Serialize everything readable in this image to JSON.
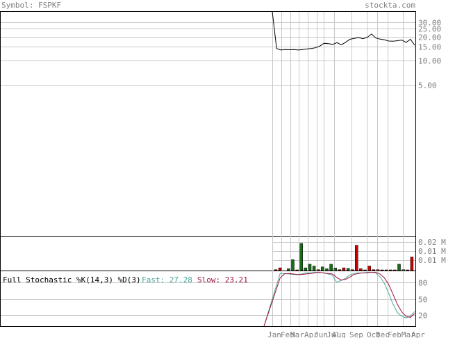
{
  "header": {
    "symbol_label": "Symbol: FSPKF",
    "site": "stockta.com"
  },
  "colors": {
    "header_text": "#7f7f7f",
    "axis_text": "#7f7f7f",
    "grid": "#c8c8c8",
    "price_line": "#000000",
    "volume_up": "#1a6b1a",
    "volume_down": "#cc0000",
    "fast_line": "#4aa8a0",
    "slow_line": "#a0103c",
    "stoch_label": "#000000"
  },
  "chart_data": [
    {
      "type": "line",
      "panel": "price",
      "scale": "log",
      "ylim": [
        5,
        33
      ],
      "y_ticks": [
        30,
        25,
        20,
        15,
        10,
        5
      ],
      "y_tick_labels": [
        "30.00",
        "25.00",
        "20.00",
        "15.00",
        "10.00",
        "5.00"
      ],
      "x_labels": [
        "Jan",
        "Feb",
        "Mar",
        "Apr",
        "Jun",
        "Jul",
        "Aug",
        "Sep",
        "Oct",
        "Dec",
        "Feb",
        "Mar",
        "Apr"
      ],
      "series": [
        {
          "values": [
            60,
            14.2,
            13.6,
            13.8,
            13.7,
            13.8,
            13.6,
            13.8,
            14.0,
            14.2,
            14.5,
            15.2,
            16.5,
            16.3,
            16.0,
            16.8,
            15.8,
            17.0,
            18.5,
            19.0,
            19.5,
            18.8,
            19.6,
            21.5,
            19.2,
            18.6,
            18.2,
            17.6,
            17.5,
            17.8,
            18.1,
            16.9,
            18.5,
            15.6
          ]
        }
      ]
    },
    {
      "type": "bar",
      "panel": "volume",
      "y_tick_labels": [
        "0.02 M",
        "0.01 M",
        "0.01 M"
      ],
      "series": [
        {
          "values": [
            0.0005,
            0.0015,
            0.0,
            0.001,
            0.006,
            0.0004,
            0.015,
            0.0015,
            0.0035,
            0.0025,
            0.0005,
            0.002,
            0.001,
            0.0035,
            0.0014,
            0.0005,
            0.0015,
            0.0012,
            0.0005,
            0.014,
            0.001,
            0.0004,
            0.0025,
            0.0005,
            0.0005,
            0.0004,
            0.0004,
            0.0004,
            0.0004,
            0.0035,
            0.0005,
            0.0004,
            0.0075
          ],
          "colors": [
            "red",
            "red",
            "green",
            "green",
            "green",
            "red",
            "green",
            "green",
            "green",
            "green",
            "red",
            "green",
            "green",
            "green",
            "green",
            "red",
            "red",
            "green",
            "red",
            "red",
            "red",
            "green",
            "red",
            "red",
            "red",
            "red",
            "red",
            "red",
            "red",
            "green",
            "green",
            "red",
            "red"
          ]
        }
      ]
    },
    {
      "type": "line",
      "panel": "stochastic",
      "title": "Full Stochastic %K(14,3) %D(3)",
      "fast_label": "Fast: 27.28",
      "slow_label": "Slow: 23.21",
      "ylim": [
        0,
        100
      ],
      "y_ticks": [
        80,
        50,
        20
      ],
      "series": [
        {
          "name": "Fast",
          "values": [
            0,
            96,
            96,
            95,
            94,
            94,
            95,
            97,
            97,
            98,
            98,
            97,
            95,
            93,
            80,
            83,
            87,
            93,
            96,
            97,
            97,
            98,
            98,
            97,
            90,
            78,
            60,
            40,
            25,
            18,
            15,
            18,
            27
          ]
        },
        {
          "name": "Slow",
          "values": [
            0,
            88,
            95,
            96,
            95,
            94,
            94,
            95,
            96,
            97,
            98,
            97,
            96,
            95,
            89,
            84,
            85,
            89,
            94,
            96,
            97,
            97,
            98,
            98,
            95,
            88,
            76,
            58,
            40,
            26,
            18,
            16,
            23
          ]
        }
      ]
    }
  ]
}
